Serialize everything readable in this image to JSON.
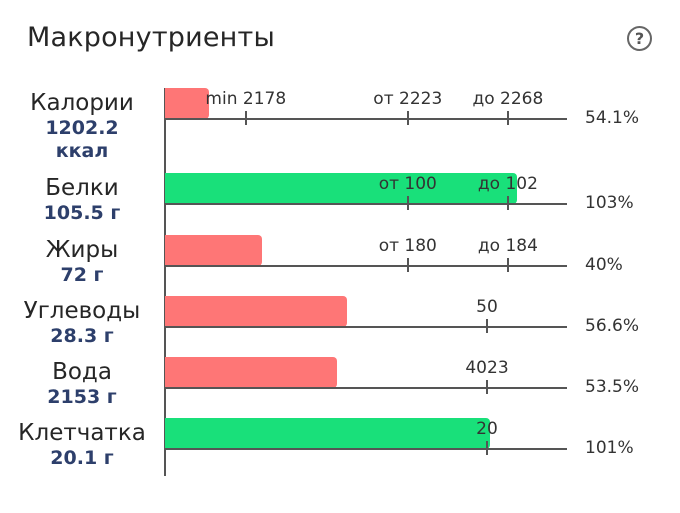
{
  "title": "Макронутриенты",
  "help_icon": "question-circle-icon",
  "help_symbol": "?",
  "colors": {
    "under": "#fe7676",
    "ok": "#19e07a",
    "amount": "#2d3f6b"
  },
  "scale_max": 2268,
  "rows": [
    {
      "label": "Калории",
      "amount": "1202.2",
      "unit": "ккал",
      "percent": "54.1%",
      "status": "under",
      "fill": 0.109,
      "marks": [
        {
          "text": "min 2178",
          "pos": 0.201
        },
        {
          "text": "от 2223",
          "pos": 0.604
        },
        {
          "text": "до 2268",
          "pos": 0.853
        }
      ]
    },
    {
      "label": "Белки",
      "amount": "105.5 г",
      "percent": "103%",
      "status": "ok",
      "fill": 0.876,
      "marks": [
        {
          "text": "от 100",
          "pos": 0.604
        },
        {
          "text": "до 102",
          "pos": 0.853
        }
      ]
    },
    {
      "label": "Жиры",
      "amount": "72 г",
      "percent": "40%",
      "status": "under",
      "fill": 0.241,
      "marks": [
        {
          "text": "от 180",
          "pos": 0.604
        },
        {
          "text": "до 184",
          "pos": 0.853
        }
      ]
    },
    {
      "label": "Углеводы",
      "amount": "28.3 г",
      "percent": "56.6%",
      "status": "under",
      "fill": 0.453,
      "marks": [
        {
          "text": "50",
          "pos": 0.801
        }
      ]
    },
    {
      "label": "Вода",
      "amount": "2153 г",
      "percent": "53.5%",
      "status": "under",
      "fill": 0.428,
      "marks": [
        {
          "text": "4023",
          "pos": 0.801
        }
      ]
    },
    {
      "label": "Клетчатка",
      "amount": "20.1 г",
      "percent": "101%",
      "status": "ok",
      "fill": 0.808,
      "marks": [
        {
          "text": "20",
          "pos": 0.801
        }
      ]
    }
  ]
}
